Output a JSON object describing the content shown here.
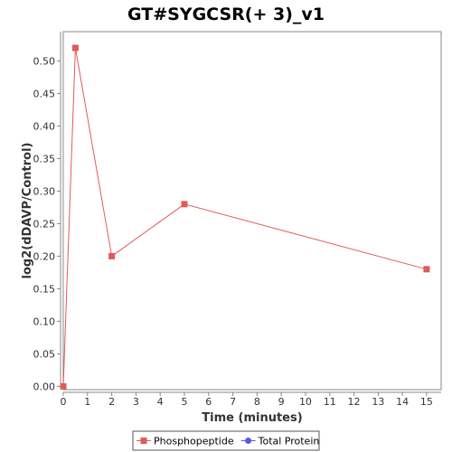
{
  "chart_data": {
    "type": "line",
    "title": "GT#SYGCSR(+ 3)_v1",
    "xlabel": "Time (minutes)",
    "ylabel": "log2(dDAVP/Control)",
    "xlim": [
      0,
      15.6
    ],
    "ylim": [
      -0.005,
      0.545
    ],
    "xticks": [
      0,
      1,
      2,
      3,
      4,
      5,
      6,
      7,
      8,
      9,
      10,
      11,
      12,
      13,
      14,
      15
    ],
    "yticks": [
      0.0,
      0.05,
      0.1,
      0.15,
      0.2,
      0.25,
      0.3,
      0.35,
      0.4,
      0.45,
      0.5
    ],
    "ytick_labels": [
      "0.00",
      "0.05",
      "0.10",
      "0.15",
      "0.20",
      "0.25",
      "0.30",
      "0.35",
      "0.40",
      "0.45",
      "0.50"
    ],
    "grid": false,
    "legend_position": "bottom-center",
    "series": [
      {
        "name": "Phosphopeptide",
        "color": "#e05a5a",
        "marker": "square",
        "x": [
          0,
          0.5,
          2,
          5,
          15
        ],
        "y": [
          0.0,
          0.52,
          0.2,
          0.28,
          0.18
        ]
      },
      {
        "name": "Total Protein",
        "color": "#5a5ae0",
        "marker": "circle",
        "x": [],
        "y": []
      }
    ]
  }
}
